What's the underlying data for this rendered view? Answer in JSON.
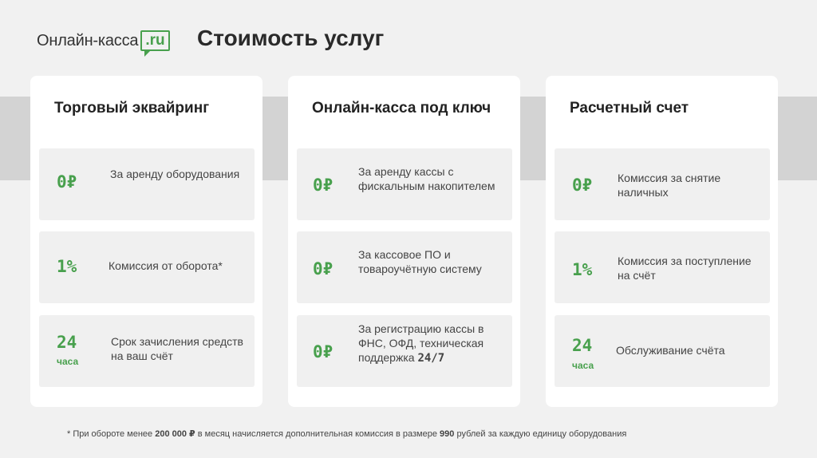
{
  "logo": {
    "text": "Онлайн-касса",
    "badge": ".ru"
  },
  "title": "Стоимость услуг",
  "cards": [
    {
      "title": "Торговый эквайринг",
      "items": [
        {
          "value": "0₽",
          "desc": "За аренду оборудования"
        },
        {
          "value": "1%",
          "desc": "Комиссия от оборота*"
        },
        {
          "value": "24",
          "unit": "часа",
          "desc": "Срок зачисления средств на ваш счёт"
        }
      ]
    },
    {
      "title": "Онлайн-касса под ключ",
      "items": [
        {
          "value": "0₽",
          "desc": "За аренду кассы с фискальным накопителем"
        },
        {
          "value": "0₽",
          "desc": "За кассовое ПО и товароучётную систему"
        },
        {
          "value": "0₽",
          "desc_prefix": "За регистрацию кассы в ФНС, ОФД, техническая поддержка ",
          "desc_bold": "24/7"
        }
      ]
    },
    {
      "title": "Расчетный счет",
      "items": [
        {
          "value": "0₽",
          "desc": "Комиссия за снятие наличных"
        },
        {
          "value": "1%",
          "desc": "Комиссия за поступление на счёт"
        },
        {
          "value": "24",
          "unit": "часа",
          "desc": "Обслуживание счёта"
        }
      ]
    }
  ],
  "footnote": {
    "p1": "* При обороте менее ",
    "b1": "200 000 ₽",
    "p2": " в месяц начисляется дополнительная комиссия в размере ",
    "b2": "990",
    "p3": " рублей за каждую единицу оборудования"
  },
  "colors": {
    "accent": "#48a04d",
    "background": "#f1f1f1",
    "band": "#d3d3d3"
  }
}
